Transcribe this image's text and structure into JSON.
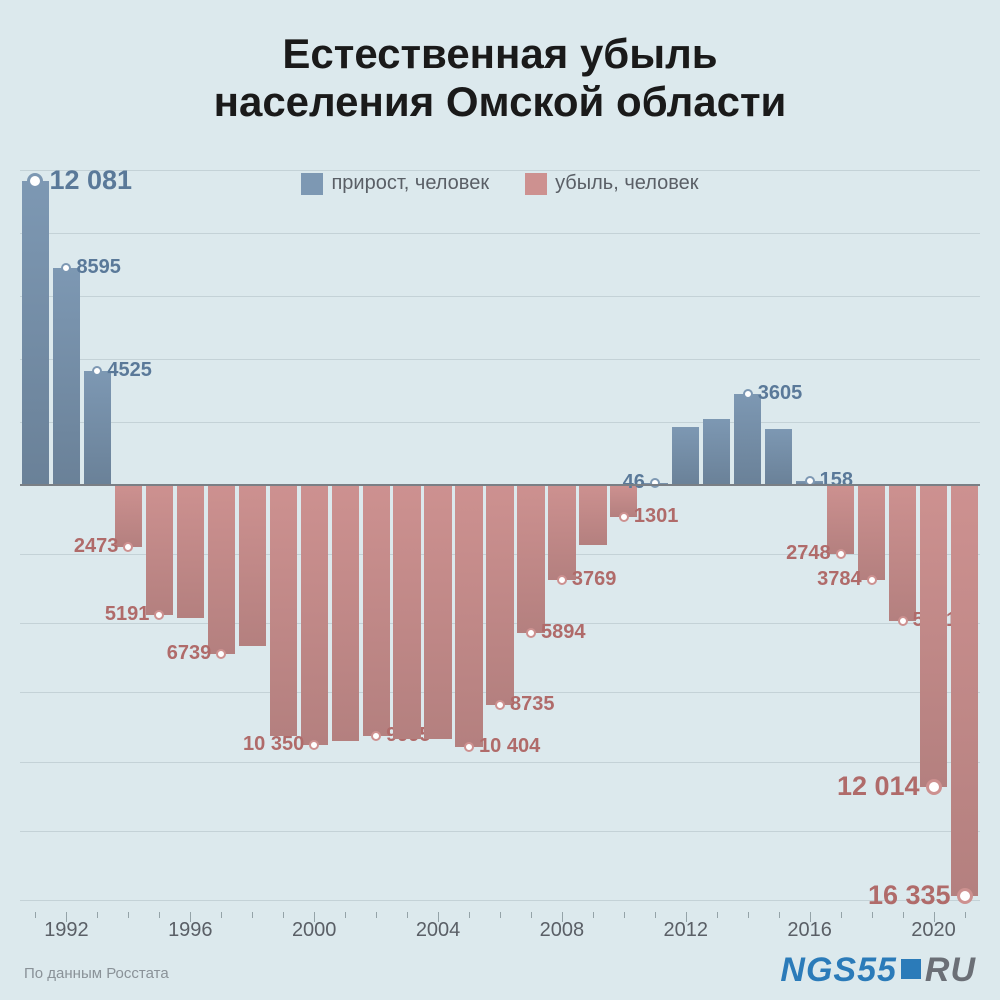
{
  "title_line1": "Естественная убыль",
  "title_line2": "населения Омской области",
  "title_fontsize": 42,
  "legend": {
    "fontsize": 20,
    "items": [
      {
        "label": "прирост, человек",
        "color": "#7d98b3"
      },
      {
        "label": "убыль, человек",
        "color": "#cd9190"
      }
    ]
  },
  "chart": {
    "type": "bar",
    "background_color": "#dce9ed",
    "grid_color": "#c4d2d7",
    "axis_color": "#7a7f85",
    "pos_color": "#7d98b3",
    "neg_color": "#cd9190",
    "pos_label_color": "#5a7999",
    "neg_label_color": "#b06b6a",
    "year_start": 1991,
    "year_end": 2021,
    "x_label_step": 4,
    "x_label_first": 1992,
    "positive_max": 12500,
    "negative_max": 16500,
    "value_label_fontsize": 20,
    "value_label_fontsize_large": 27,
    "x_label_fontsize": 20,
    "bar_gap_ratio": 0.12,
    "grid_positive_steps": 5,
    "grid_negative_steps": 6,
    "bars": [
      {
        "year": 1991,
        "value": 12081,
        "label": "12 081",
        "show_label": true,
        "label_side": "right",
        "large": true
      },
      {
        "year": 1992,
        "value": 8595,
        "label": "8595",
        "show_label": true,
        "label_side": "right"
      },
      {
        "year": 1993,
        "value": 4525,
        "label": "4525",
        "show_label": true,
        "label_side": "right"
      },
      {
        "year": 1994,
        "value": -2473,
        "label": "2473",
        "show_label": true,
        "label_side": "left"
      },
      {
        "year": 1995,
        "value": -5191,
        "label": "5191",
        "show_label": true,
        "label_side": "left"
      },
      {
        "year": 1996,
        "value": -5300,
        "label": "",
        "show_label": false
      },
      {
        "year": 1997,
        "value": -6739,
        "label": "6739",
        "show_label": true,
        "label_side": "left"
      },
      {
        "year": 1998,
        "value": -6400,
        "label": "",
        "show_label": false
      },
      {
        "year": 1999,
        "value": -10000,
        "label": "",
        "show_label": false
      },
      {
        "year": 2000,
        "value": -10350,
        "label": "10 350",
        "show_label": true,
        "label_side": "left"
      },
      {
        "year": 2001,
        "value": -10200,
        "label": "",
        "show_label": false
      },
      {
        "year": 2002,
        "value": -9995,
        "label": "9995",
        "show_label": true,
        "label_side": "right"
      },
      {
        "year": 2003,
        "value": -10100,
        "label": "",
        "show_label": false
      },
      {
        "year": 2004,
        "value": -10100,
        "label": "",
        "show_label": false
      },
      {
        "year": 2005,
        "value": -10404,
        "label": "10 404",
        "show_label": true,
        "label_side": "right"
      },
      {
        "year": 2006,
        "value": -8735,
        "label": "8735",
        "show_label": true,
        "label_side": "right"
      },
      {
        "year": 2007,
        "value": -5894,
        "label": "5894",
        "show_label": true,
        "label_side": "right"
      },
      {
        "year": 2008,
        "value": -3769,
        "label": "3769",
        "show_label": true,
        "label_side": "right"
      },
      {
        "year": 2009,
        "value": -2400,
        "label": "",
        "show_label": false
      },
      {
        "year": 2010,
        "value": -1301,
        "label": "1301",
        "show_label": true,
        "label_side": "right"
      },
      {
        "year": 2011,
        "value": 46,
        "label": "46",
        "show_label": true,
        "label_side": "left"
      },
      {
        "year": 2012,
        "value": 2300,
        "label": "",
        "show_label": false
      },
      {
        "year": 2013,
        "value": 2600,
        "label": "",
        "show_label": false
      },
      {
        "year": 2014,
        "value": 3605,
        "label": "3605",
        "show_label": true,
        "label_side": "right"
      },
      {
        "year": 2015,
        "value": 2200,
        "label": "",
        "show_label": false
      },
      {
        "year": 2016,
        "value": 158,
        "label": "158",
        "show_label": true,
        "label_side": "right"
      },
      {
        "year": 2017,
        "value": -2748,
        "label": "2748",
        "show_label": true,
        "label_side": "left"
      },
      {
        "year": 2018,
        "value": -3784,
        "label": "3784",
        "show_label": true,
        "label_side": "left"
      },
      {
        "year": 2019,
        "value": -5421,
        "label": "5421",
        "show_label": true,
        "label_side": "right"
      },
      {
        "year": 2020,
        "value": -12014,
        "label": "12 014",
        "show_label": true,
        "label_side": "left",
        "large": true
      },
      {
        "year": 2021,
        "value": -16335,
        "label": "16 335",
        "show_label": true,
        "label_side": "left",
        "large": true
      }
    ]
  },
  "source_text": "По данным Росстата",
  "source_fontsize": 15,
  "logo": {
    "text_left": "NGS55",
    "text_right": "RU",
    "color_left": "#2b7bb9",
    "color_right": "#6b6f76",
    "square_color": "#2b7bb9",
    "fontsize": 34,
    "square_size": 20
  }
}
